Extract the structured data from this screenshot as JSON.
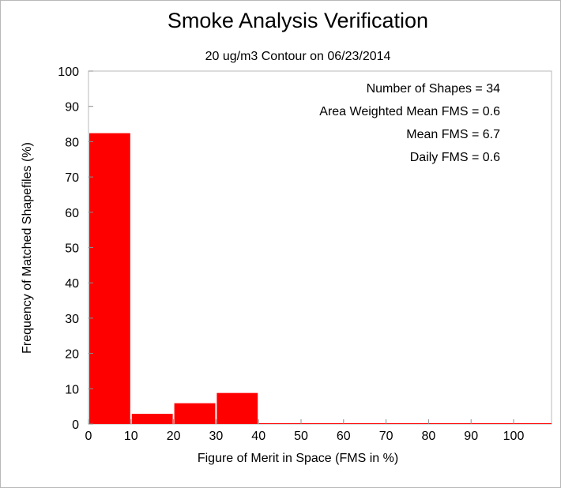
{
  "chart_data": {
    "type": "bar",
    "title": "Smoke Analysis Verification",
    "subtitle": "20 ug/m3 Contour on 06/23/2014",
    "xlabel": "Figure of Merit in Space (FMS in %)",
    "ylabel": "Frequency of Matched Shapefiles (%)",
    "xlim": [
      0,
      100
    ],
    "ylim": [
      0,
      100
    ],
    "xticks": [
      "0",
      "10",
      "20",
      "30",
      "40",
      "50",
      "60",
      "70",
      "80",
      "90",
      "100"
    ],
    "yticks": [
      "0",
      "10",
      "20",
      "30",
      "40",
      "50",
      "60",
      "70",
      "80",
      "90",
      "100"
    ],
    "bins": [
      {
        "start": 0,
        "end": 10,
        "value": 82.4
      },
      {
        "start": 10,
        "end": 20,
        "value": 2.9
      },
      {
        "start": 20,
        "end": 30,
        "value": 5.9
      },
      {
        "start": 30,
        "end": 40,
        "value": 8.8
      },
      {
        "start": 40,
        "end": 50,
        "value": 0
      },
      {
        "start": 50,
        "end": 60,
        "value": 0
      },
      {
        "start": 60,
        "end": 70,
        "value": 0
      },
      {
        "start": 70,
        "end": 80,
        "value": 0
      },
      {
        "start": 80,
        "end": 90,
        "value": 0
      },
      {
        "start": 90,
        "end": 100,
        "value": 0
      }
    ],
    "annotations": [
      "Number of Shapes = 34",
      "Area Weighted Mean FMS = 0.6",
      "Mean FMS = 6.7",
      "Daily FMS = 0.6"
    ],
    "bar_color": "#ff0000",
    "grid": false,
    "legend": "none"
  }
}
